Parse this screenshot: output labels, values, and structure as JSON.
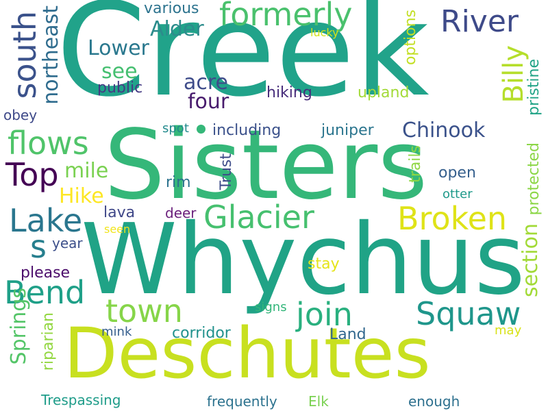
{
  "words": [
    {
      "text": "Creek",
      "color": "#21a38a"
    },
    {
      "text": "Sisters",
      "color": "#35b779"
    },
    {
      "text": "Whychus",
      "color": "#20a386"
    },
    {
      "text": "Deschutes",
      "color": "#c8e020"
    },
    {
      "text": "formerly",
      "color": "#4ac16d"
    },
    {
      "text": "River",
      "color": "#3e4a89"
    },
    {
      "text": "south",
      "color": "#3b528b"
    },
    {
      "text": "Alder",
      "color": "#2c8c8c"
    },
    {
      "text": "Lower",
      "color": "#2a788e"
    },
    {
      "text": "see",
      "color": "#45bf70"
    },
    {
      "text": "public",
      "color": "#443a83"
    },
    {
      "text": "acre",
      "color": "#3e4c8a"
    },
    {
      "text": "four",
      "color": "#481b6d"
    },
    {
      "text": "hiking",
      "color": "#472d7b"
    },
    {
      "text": "upland",
      "color": "#a2da37"
    },
    {
      "text": "Billy",
      "color": "#b5de2b"
    },
    {
      "text": "Chinook",
      "color": "#3b528b"
    },
    {
      "text": "options",
      "color": "#c2df23"
    },
    {
      "text": "pristine",
      "color": "#20a386"
    },
    {
      "text": "northeast",
      "color": "#2f6c8e"
    },
    {
      "text": "flows",
      "color": "#50c46a"
    },
    {
      "text": "obey",
      "color": "#3e4989"
    },
    {
      "text": "spot",
      "color": "#238a8d"
    },
    {
      "text": "including",
      "color": "#3b518b"
    },
    {
      "text": "juniper",
      "color": "#2b758e"
    },
    {
      "text": "Top",
      "color": "#440154"
    },
    {
      "text": "mile",
      "color": "#7ad151"
    },
    {
      "text": "Trust",
      "color": "#3e4c8a"
    },
    {
      "text": "rim",
      "color": "#2c738e"
    },
    {
      "text": "open",
      "color": "#355f8d"
    },
    {
      "text": "trails",
      "color": "#8fd744"
    },
    {
      "text": "Hike",
      "color": "#fde725"
    },
    {
      "text": "otter",
      "color": "#1f9a8a"
    },
    {
      "text": "Lake",
      "color": "#2a768e"
    },
    {
      "text": "lava",
      "color": "#3f4788"
    },
    {
      "text": "deer",
      "color": "#6a1f7b"
    },
    {
      "text": "Glacier",
      "color": "#46c06f"
    },
    {
      "text": "Broken",
      "color": "#dfe318"
    },
    {
      "text": "protected",
      "color": "#8bd646"
    },
    {
      "text": "seen",
      "color": "#f1e51d"
    },
    {
      "text": "s",
      "color": "#277f8e"
    },
    {
      "text": "year",
      "color": "#3c4f8a"
    },
    {
      "text": "section",
      "color": "#a2da37"
    },
    {
      "text": "please",
      "color": "#4b0c6b"
    },
    {
      "text": "stay",
      "color": "#e5e419"
    },
    {
      "text": "Bend",
      "color": "#1fa088"
    },
    {
      "text": "town",
      "color": "#86d549"
    },
    {
      "text": "join",
      "color": "#2ab07f"
    },
    {
      "text": "Squaw",
      "color": "#1f968b"
    },
    {
      "text": "signs",
      "color": "#33b67a"
    },
    {
      "text": "Springs",
      "color": "#54c568"
    },
    {
      "text": "riparian",
      "color": "#93d741"
    },
    {
      "text": "mink",
      "color": "#355e8d"
    },
    {
      "text": "corridor",
      "color": "#21918c"
    },
    {
      "text": "Land",
      "color": "#31678e"
    },
    {
      "text": "may",
      "color": "#d8e219"
    },
    {
      "text": "Trespassing",
      "color": "#1e9c89"
    },
    {
      "text": "frequently",
      "color": "#2c728e"
    },
    {
      "text": "Elk",
      "color": "#7ad151"
    },
    {
      "text": "enough",
      "color": "#2d708e"
    },
    {
      "text": "various",
      "color": "#2c738e"
    },
    {
      "text": "lucky",
      "color": "#d2e21b"
    }
  ]
}
